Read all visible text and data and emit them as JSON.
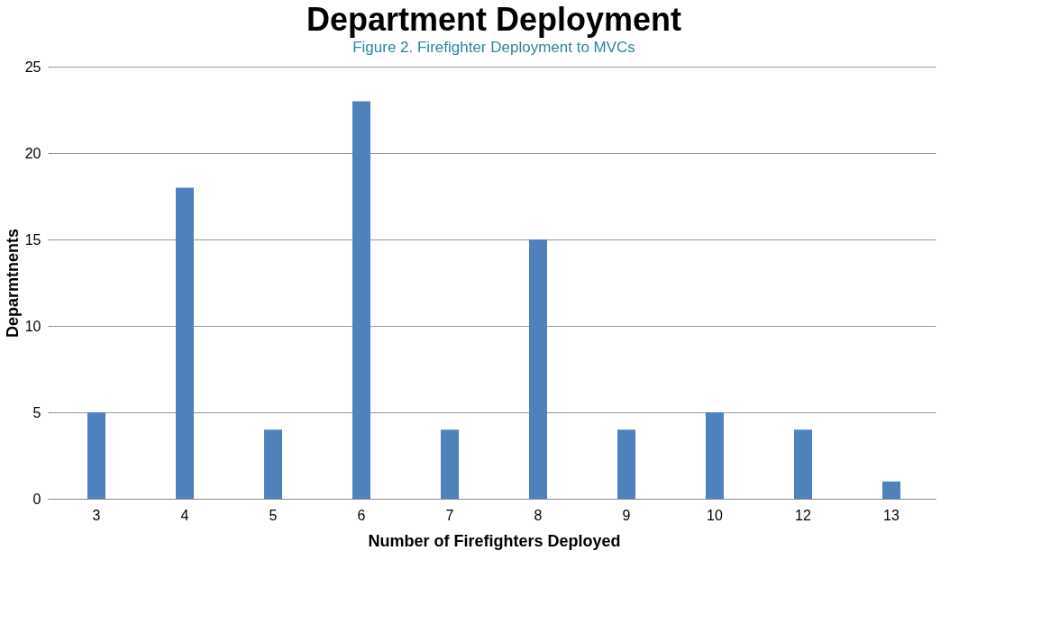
{
  "chart_data": {
    "type": "bar",
    "title": "Department Deployment",
    "subtitle": "Figure 2. Firefighter Deployment to MVCs",
    "xlabel": "Number of Firefighters Deployed",
    "ylabel": "Deparmtnents",
    "categories": [
      "3",
      "4",
      "5",
      "6",
      "7",
      "8",
      "9",
      "10",
      "12",
      "13"
    ],
    "values": [
      5,
      18,
      4,
      23,
      4,
      15,
      4,
      5,
      4,
      1
    ],
    "color": "#4f81bd",
    "ylim": [
      0,
      25
    ],
    "yticks": [
      0,
      5,
      10,
      15,
      20,
      25
    ],
    "grid": "y"
  }
}
